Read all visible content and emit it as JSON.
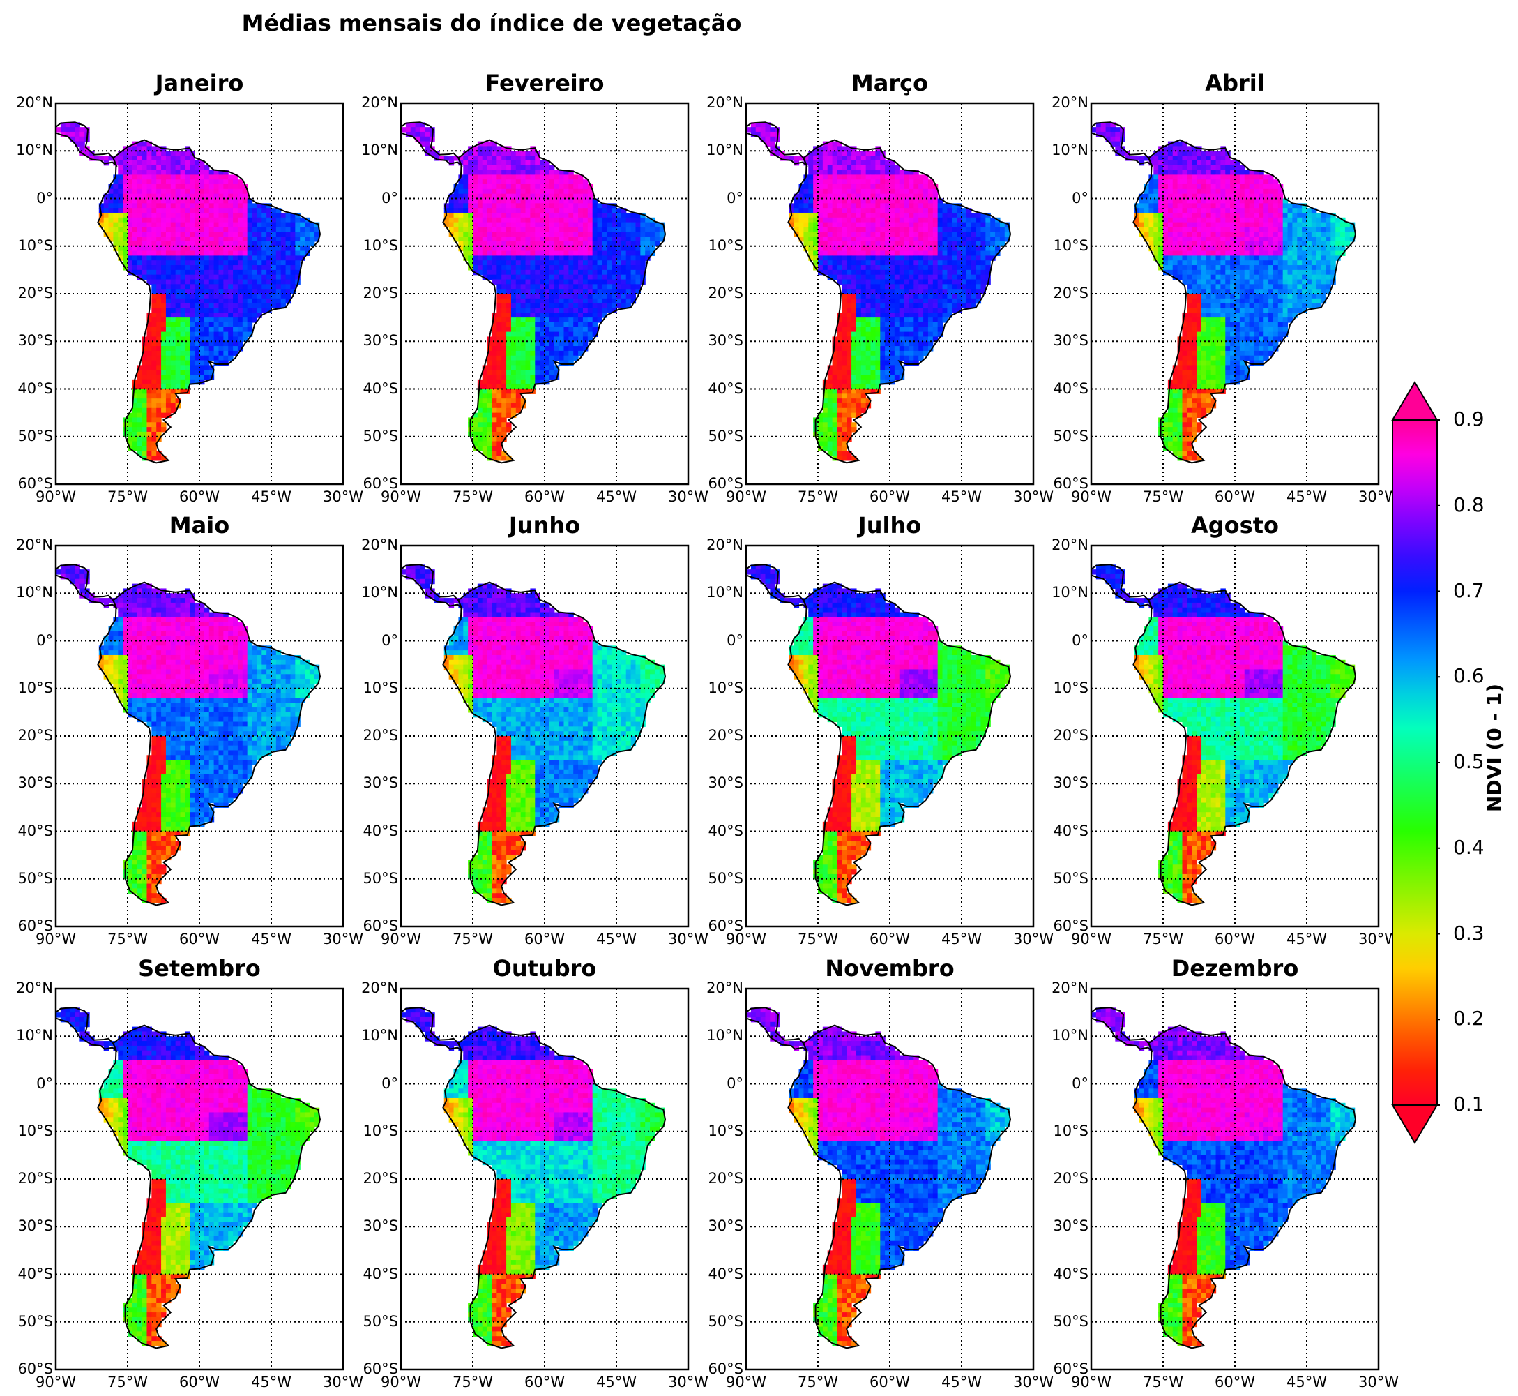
{
  "title": "Médias mensais do índice de vegetação",
  "panels": [
    {
      "name": "Janeiro",
      "profile": "wet_south"
    },
    {
      "name": "Fevereiro",
      "profile": "wet_south"
    },
    {
      "name": "Março",
      "profile": "wet_south"
    },
    {
      "name": "Abril",
      "profile": "transition"
    },
    {
      "name": "Maio",
      "profile": "transition"
    },
    {
      "name": "Junho",
      "profile": "dry_start"
    },
    {
      "name": "Julho",
      "profile": "dry"
    },
    {
      "name": "Agosto",
      "profile": "dry"
    },
    {
      "name": "Setembro",
      "profile": "dry"
    },
    {
      "name": "Outubro",
      "profile": "dry_end"
    },
    {
      "name": "Novembro",
      "profile": "wet_start"
    },
    {
      "name": "Dezembro",
      "profile": "wet_start"
    }
  ],
  "lat_ticks": [
    "20°N",
    "10°N",
    "0°",
    "10°S",
    "20°S",
    "30°S",
    "40°S",
    "50°S",
    "60°S"
  ],
  "lon_ticks": [
    "90°W",
    "75°W",
    "60°W",
    "45°W",
    "30°W"
  ],
  "extent": {
    "lon_min": -90,
    "lon_max": -30,
    "lat_min": -60,
    "lat_max": 20
  },
  "colorbar": {
    "label": "NDVI (0 - 1)",
    "ticks": [
      "0.9",
      "0.8",
      "0.7",
      "0.6",
      "0.5",
      "0.4",
      "0.3",
      "0.2",
      "0.1"
    ],
    "vmin": 0.1,
    "vmax": 0.9,
    "extend": "both",
    "colormap": "gist_rainbow_r"
  }
}
